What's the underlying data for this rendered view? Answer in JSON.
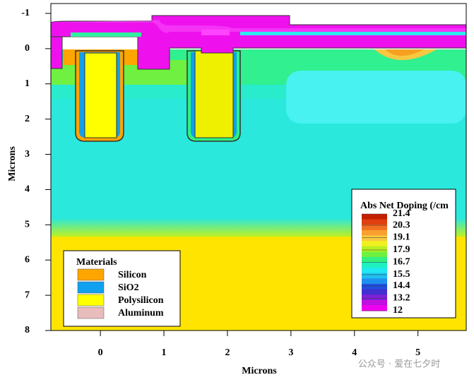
{
  "chart_data": {
    "type": "contour",
    "xlabel": "Microns",
    "ylabel": "Microns",
    "xlim": [
      -0.78,
      5.76
    ],
    "ylim": [
      -1.28,
      8
    ],
    "y_inverted": true,
    "xticks": [
      0,
      1,
      2,
      3,
      4,
      5
    ],
    "yticks": [
      -1,
      0,
      1,
      2,
      3,
      4,
      5,
      6,
      7,
      8
    ],
    "legend": {
      "title": "Materials",
      "items": [
        {
          "name": "Silicon",
          "color": "#ffa500"
        },
        {
          "name": "SiO2",
          "color": "#0fa0f0"
        },
        {
          "name": "Polysilicon",
          "color": "#ffff00"
        },
        {
          "name": "Aluminum",
          "color": "#e8bcbc"
        }
      ]
    },
    "colorbar": {
      "title": "Abs Net Doping (/cm",
      "ticks": [
        21.4,
        20.3,
        19.1,
        17.9,
        16.7,
        15.5,
        14.4,
        13.2,
        12
      ],
      "colors": [
        "#c42000",
        "#e04010",
        "#f07020",
        "#f8a030",
        "#f8c840",
        "#f0f020",
        "#b8f020",
        "#70f040",
        "#30f080",
        "#20f0c0",
        "#20e8f0",
        "#20c0f0",
        "#2090f0",
        "#2050e0",
        "#4030d0",
        "#8020d8",
        "#c010e0",
        "#f000f0"
      ]
    },
    "annotation": "公众号 · 爱在七夕时"
  }
}
